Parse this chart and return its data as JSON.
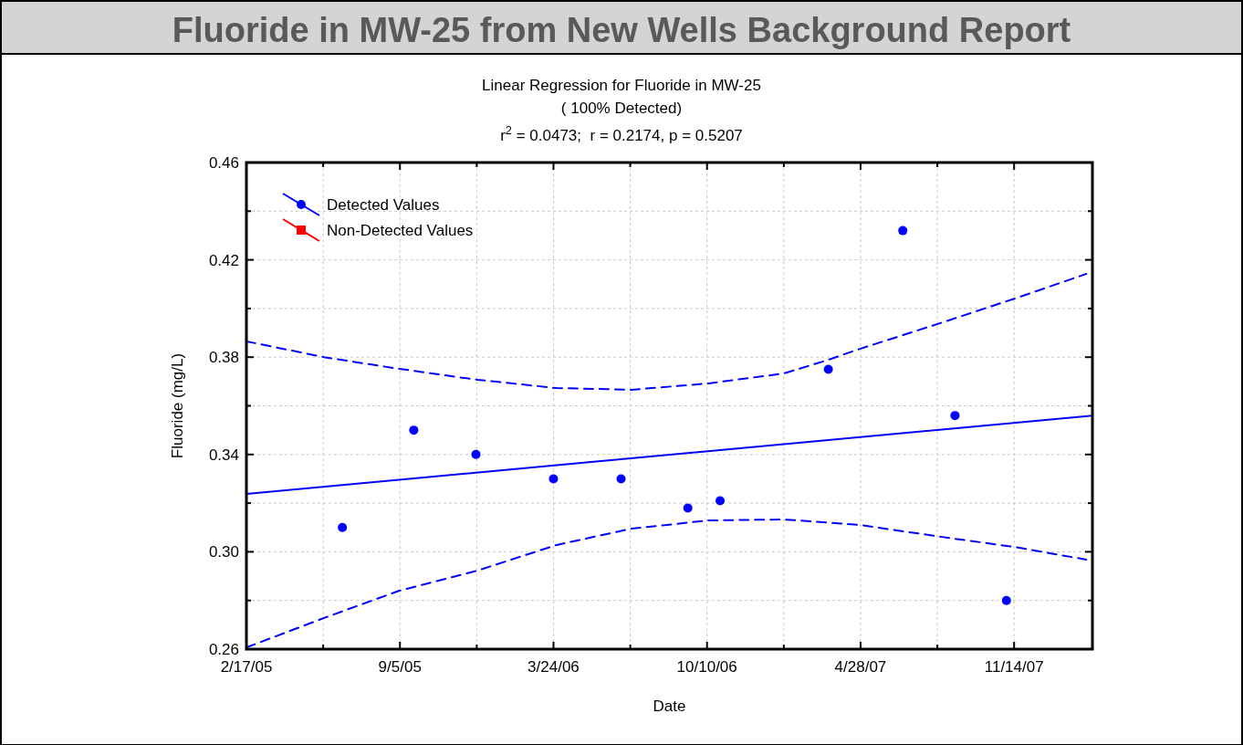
{
  "chart_data": {
    "type": "scatter",
    "title": "Fluoride in MW-25 from New Wells Background Report",
    "subtitle": "Linear Regression for Fluoride in MW-25",
    "annotations": [
      "( 100% Detected)",
      "r$^{2}$ = 0.0473;  r = 0.2174, p = 0.5207"
    ],
    "xlabel": "Date",
    "ylabel": "Fluoride (mg/L)",
    "x": [
      "2005-06-22",
      "2005-09-23",
      "2005-12-13",
      "2006-03-24",
      "2006-06-20",
      "2006-09-15",
      "2006-10-27",
      "2007-03-17",
      "2007-06-22",
      "2007-08-29",
      "2007-11-04"
    ],
    "series": [
      {
        "name": "Detected Values",
        "color": "#0000ff",
        "marker": "circle",
        "values": [
          0.31,
          0.35,
          0.34,
          0.33,
          0.33,
          0.318,
          0.321,
          0.375,
          0.432,
          0.356,
          0.28
        ]
      },
      {
        "name": "Non-Detected Values",
        "color": "#ff0000",
        "marker": "square",
        "values": [
          null,
          null,
          null,
          null,
          null,
          null,
          null,
          null,
          null,
          null,
          null
        ]
      },
      {
        "color": "#0000ff",
        "type": "line",
        "line_style": "solid",
        "marker": "none",
        "x": [
          "2005-02-17",
          "2008-02-24"
        ],
        "values": [
          0.3238,
          0.356
        ]
      },
      {
        "color": "#0000ff",
        "type": "line",
        "line_style": "dashed",
        "marker": "none",
        "x": [
          "2005-02-17",
          "2005-05-29",
          "2005-09-04",
          "2005-12-15",
          "2006-03-28",
          "2006-07-03",
          "2006-10-12",
          "2007-01-18",
          "2007-03-14",
          "2007-04-28",
          "2007-08-10",
          "2007-11-14",
          "2008-02-16"
        ],
        "values": [
          0.3865,
          0.38,
          0.3752,
          0.3707,
          0.3673,
          0.3666,
          0.3692,
          0.3733,
          0.3786,
          0.3835,
          0.394,
          0.404,
          0.4142
        ]
      },
      {
        "color": "#0000ff",
        "type": "line",
        "line_style": "dashed",
        "marker": "none",
        "x": [
          "2005-02-17",
          "2005-05-29",
          "2005-09-04",
          "2005-12-15",
          "2006-03-28",
          "2006-07-03",
          "2006-10-12",
          "2007-01-18",
          "2007-04-28",
          "2007-08-10",
          "2007-11-14",
          "2008-02-16"
        ],
        "values": [
          0.2607,
          0.2728,
          0.284,
          0.2923,
          0.3028,
          0.3095,
          0.3129,
          0.3133,
          0.311,
          0.3062,
          0.302,
          0.2968
        ]
      }
    ],
    "xlim": [
      "2005-02-17",
      "2008-02-24"
    ],
    "xticks": [
      {
        "value": "2005-02-17",
        "label": "2/17/05"
      },
      {
        "value": "2005-05-28",
        "label": null
      },
      {
        "value": "2005-09-05",
        "label": "9/5/05"
      },
      {
        "value": "2005-12-14",
        "label": null
      },
      {
        "value": "2006-03-24",
        "label": "3/24/06"
      },
      {
        "value": "2006-07-02",
        "label": null
      },
      {
        "value": "2006-10-10",
        "label": "10/10/06"
      },
      {
        "value": "2007-01-18",
        "label": null
      },
      {
        "value": "2007-04-28",
        "label": "4/28/07"
      },
      {
        "value": "2007-08-06",
        "label": null
      },
      {
        "value": "2007-11-14",
        "label": "11/14/07"
      }
    ],
    "ylim": [
      0.26,
      0.46
    ],
    "yticks": [
      {
        "value": 0.26,
        "label": "0.26"
      },
      {
        "value": 0.28,
        "label": null
      },
      {
        "value": 0.3,
        "label": "0.30"
      },
      {
        "value": 0.32,
        "label": null
      },
      {
        "value": 0.34,
        "label": "0.34"
      },
      {
        "value": 0.36,
        "label": null
      },
      {
        "value": 0.38,
        "label": "0.38"
      },
      {
        "value": 0.4,
        "label": null
      },
      {
        "value": 0.42,
        "label": "0.42"
      },
      {
        "value": 0.44,
        "label": null
      },
      {
        "value": 0.46,
        "label": "0.46"
      }
    ],
    "grid": true,
    "legend": "top left"
  }
}
